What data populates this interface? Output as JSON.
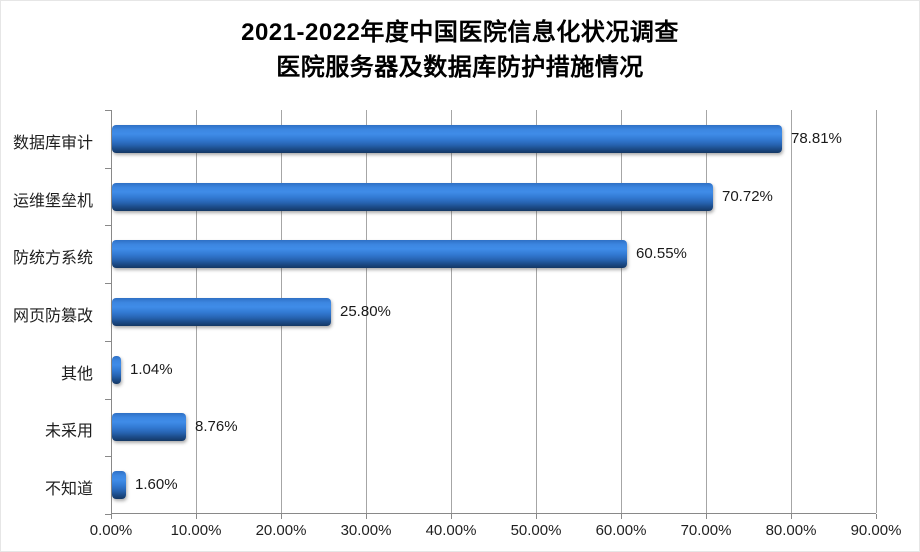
{
  "title": {
    "line1": "2021-2022年度中国医院信息化状况调查",
    "line2": "医院服务器及数据库防护措施情况"
  },
  "chart_data": {
    "type": "bar",
    "orientation": "horizontal",
    "title": "2021-2022年度中国医院信息化状况调查 医院服务器及数据库防护措施情况",
    "categories": [
      "数据库审计",
      "运维堡垒机",
      "防统方系统",
      "网页防篡改",
      "其他",
      "未采用",
      "不知道"
    ],
    "values": [
      78.81,
      70.72,
      60.55,
      25.8,
      1.04,
      8.76,
      1.6
    ],
    "value_labels": [
      "78.81%",
      "70.72%",
      "60.55%",
      "25.80%",
      "1.04%",
      "8.76%",
      "1.60%"
    ],
    "x_tick_labels": [
      "0.00%",
      "10.00%",
      "20.00%",
      "30.00%",
      "40.00%",
      "50.00%",
      "60.00%",
      "70.00%",
      "80.00%",
      "90.00%"
    ],
    "xlim": [
      0,
      90
    ],
    "xlabel": "",
    "ylabel": "",
    "grid": "vertical",
    "legend": "none",
    "bar_color": "#2b72cc",
    "bar_gradient_top": "#3f8ce8",
    "bar_gradient_bottom": "#143764",
    "gridline_color": "#a6a6a6",
    "axis_color": "#898989",
    "text_color": "#1f1f1f"
  }
}
